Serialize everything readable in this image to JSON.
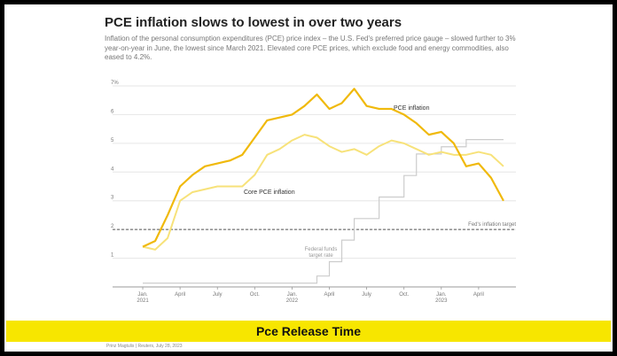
{
  "chart_data": {
    "type": "line",
    "title": "PCE inflation slows to lowest in over two years",
    "subtitle": "Inflation of the personal consumption expenditures (PCE) price index – the U.S. Fed's preferred price gauge – slowed further to 3% year-on-year in June, the lowest since March 2021. Elevated core PCE prices, which exclude food and energy commodities, also eased to 4.2%.",
    "y_unit_label": "7%",
    "yticks": [
      1,
      2,
      3,
      4,
      5,
      6
    ],
    "ylim": [
      0,
      7
    ],
    "x_tick_labels": [
      {
        "label": "Jan.",
        "sub": "2021",
        "month": 1
      },
      {
        "label": "April",
        "sub": "",
        "month": 4
      },
      {
        "label": "July",
        "sub": "",
        "month": 7
      },
      {
        "label": "Oct.",
        "sub": "",
        "month": 10
      },
      {
        "label": "Jan.",
        "sub": "2022",
        "month": 13
      },
      {
        "label": "April",
        "sub": "",
        "month": 16
      },
      {
        "label": "July",
        "sub": "",
        "month": 19
      },
      {
        "label": "Oct.",
        "sub": "",
        "month": 22
      },
      {
        "label": "Jan.",
        "sub": "2023",
        "month": 25
      },
      {
        "label": "April",
        "sub": "",
        "month": 28
      }
    ],
    "xlim": [
      0,
      31
    ],
    "series": [
      {
        "name": "PCE inflation",
        "color": "#f0b90b",
        "x": [
          1,
          2,
          3,
          4,
          5,
          6,
          7,
          8,
          9,
          10,
          11,
          12,
          13,
          14,
          15,
          16,
          17,
          18,
          19,
          20,
          21,
          22,
          23,
          24,
          25,
          26,
          27,
          28,
          29,
          30
        ],
        "y": [
          1.4,
          1.6,
          2.5,
          3.5,
          3.9,
          4.2,
          4.3,
          4.4,
          4.6,
          5.2,
          5.8,
          5.9,
          6.0,
          6.3,
          6.7,
          6.2,
          6.4,
          6.9,
          6.3,
          6.2,
          6.2,
          6.0,
          5.7,
          5.3,
          5.4,
          5.0,
          4.2,
          4.3,
          3.8,
          3.0
        ]
      },
      {
        "name": "Core PCE inflation",
        "color": "#f7e27a",
        "x": [
          1,
          2,
          3,
          4,
          5,
          6,
          7,
          8,
          9,
          10,
          11,
          12,
          13,
          14,
          15,
          16,
          17,
          18,
          19,
          20,
          21,
          22,
          23,
          24,
          25,
          26,
          27,
          28,
          29,
          30
        ],
        "y": [
          1.4,
          1.3,
          1.7,
          3.0,
          3.3,
          3.4,
          3.5,
          3.5,
          3.5,
          3.9,
          4.6,
          4.8,
          5.1,
          5.3,
          5.2,
          4.9,
          4.7,
          4.8,
          4.6,
          4.9,
          5.1,
          5.0,
          4.8,
          4.6,
          4.7,
          4.6,
          4.6,
          4.7,
          4.6,
          4.2
        ]
      },
      {
        "name": "Federal funds target rate",
        "color": "#cccccc",
        "step": true,
        "x": [
          1,
          15,
          16,
          17,
          18,
          19,
          20,
          21,
          22,
          23,
          24,
          25,
          26,
          27,
          28,
          29,
          30
        ],
        "y": [
          0.13,
          0.38,
          0.88,
          1.63,
          2.38,
          2.38,
          3.13,
          3.13,
          3.88,
          4.63,
          4.63,
          4.88,
          4.88,
          5.13,
          5.13,
          5.13,
          5.13
        ]
      }
    ],
    "annotations": {
      "pce_label": "PCE inflation",
      "core_label": "Core PCE inflation",
      "fed_rate_label_line1": "Federal funds",
      "fed_rate_label_line2": "target rate",
      "target_label": "Fed's inflation target",
      "target_value": 2
    },
    "banner": "Pce Release Time",
    "credit": "Prinz Magtulis | Reuters, July 28, 2023"
  }
}
